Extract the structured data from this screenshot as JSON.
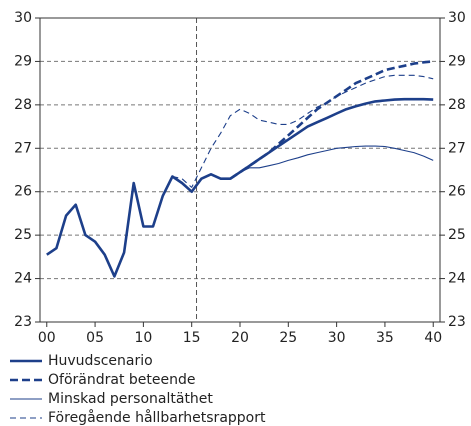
{
  "chart_data": {
    "type": "line",
    "x": [
      0,
      1,
      2,
      3,
      4,
      5,
      6,
      7,
      8,
      9,
      10,
      11,
      12,
      13,
      14,
      15,
      16,
      17,
      18,
      19,
      20,
      21,
      22,
      23,
      24,
      25,
      26,
      27,
      28,
      29,
      30,
      31,
      32,
      33,
      34,
      35,
      36,
      37,
      38,
      39,
      40
    ],
    "xlim": [
      -0.7,
      40.7
    ],
    "xticks": [
      {
        "value": 0,
        "label": "00"
      },
      {
        "value": 5,
        "label": "05"
      },
      10,
      15,
      20,
      25,
      30,
      35,
      40
    ],
    "ylim": [
      23,
      30
    ],
    "yticks": [
      23,
      24,
      25,
      26,
      27,
      28,
      29,
      30
    ],
    "grid": true,
    "vline": 15.5,
    "series": [
      {
        "name": "Huvudscenario",
        "color": "#1d3f8a",
        "width": 2.6,
        "dash": false,
        "values": [
          24.55,
          24.7,
          25.45,
          25.7,
          25.0,
          24.85,
          24.55,
          24.05,
          24.6,
          26.2,
          25.2,
          25.2,
          25.9,
          26.35,
          26.2,
          26.0,
          26.3,
          26.4,
          26.3,
          26.3,
          26.45,
          26.6,
          26.75,
          26.9,
          27.05,
          27.2,
          27.35,
          27.5,
          27.6,
          27.7,
          27.8,
          27.9,
          27.97,
          28.03,
          28.08,
          28.1,
          28.12,
          28.13,
          28.13,
          28.13,
          28.12
        ]
      },
      {
        "name": "Oförändrat beteende",
        "color": "#1d3f8a",
        "width": 2.6,
        "dash": true,
        "values": [
          null,
          null,
          null,
          null,
          null,
          null,
          null,
          null,
          null,
          null,
          null,
          null,
          null,
          null,
          null,
          null,
          null,
          null,
          null,
          26.3,
          26.45,
          26.6,
          26.75,
          26.9,
          27.1,
          27.3,
          27.5,
          27.7,
          27.9,
          28.05,
          28.2,
          28.35,
          28.5,
          28.6,
          28.7,
          28.8,
          28.85,
          28.9,
          28.95,
          28.98,
          29.0
        ]
      },
      {
        "name": "Minskad personaltäthet",
        "color": "#1d3f8a",
        "width": 1.1,
        "dash": false,
        "values": [
          null,
          null,
          null,
          null,
          null,
          null,
          null,
          null,
          null,
          null,
          null,
          null,
          null,
          null,
          null,
          null,
          null,
          null,
          null,
          26.3,
          26.45,
          26.55,
          26.55,
          26.6,
          26.65,
          26.72,
          26.78,
          26.85,
          26.9,
          26.95,
          27.0,
          27.02,
          27.04,
          27.05,
          27.05,
          27.04,
          27.0,
          26.95,
          26.9,
          26.82,
          26.72
        ]
      },
      {
        "name": "Föregående hållbarhetsrapport",
        "color": "#1d3f8a",
        "width": 1.1,
        "dash": true,
        "values": [
          null,
          null,
          null,
          null,
          null,
          null,
          null,
          null,
          null,
          null,
          null,
          null,
          null,
          26.35,
          26.3,
          26.1,
          26.55,
          27.0,
          27.35,
          27.75,
          27.9,
          27.8,
          27.65,
          27.6,
          27.55,
          27.55,
          27.65,
          27.8,
          27.95,
          28.05,
          28.2,
          28.3,
          28.4,
          28.5,
          28.58,
          28.65,
          28.68,
          28.68,
          28.68,
          28.65,
          28.6
        ]
      }
    ]
  }
}
